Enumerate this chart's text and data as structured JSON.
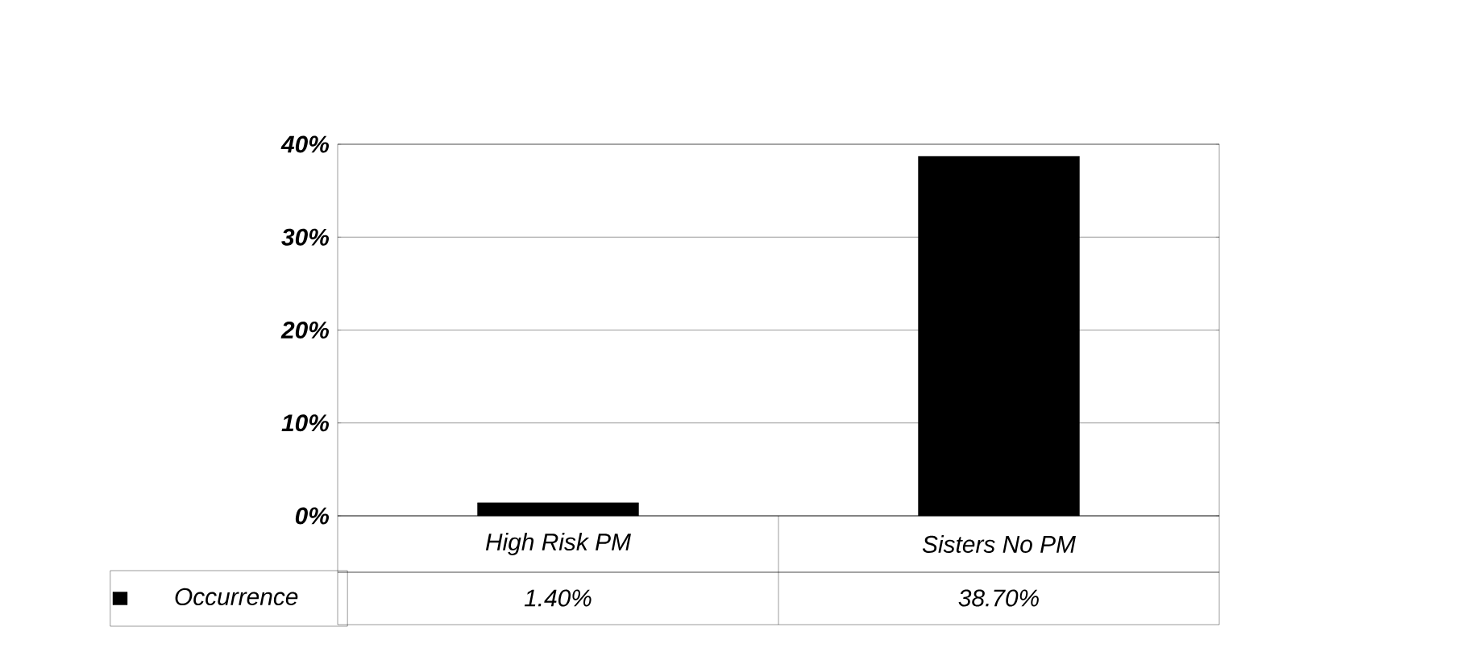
{
  "chart_data": {
    "type": "bar",
    "categories": [
      "High Risk PM",
      "Sisters No PM"
    ],
    "series": [
      {
        "name": "Occurrence",
        "color": "#000000",
        "values": [
          1.4,
          38.7
        ],
        "value_labels": [
          "1.40%",
          "38.70%"
        ]
      }
    ],
    "ylim": [
      0,
      40
    ],
    "yticks": [
      {
        "value": 0,
        "label": "0%"
      },
      {
        "value": 10,
        "label": "10%"
      },
      {
        "value": 20,
        "label": "20%"
      },
      {
        "value": 30,
        "label": "30%"
      },
      {
        "value": 40,
        "label": "40%"
      }
    ],
    "grid": "y",
    "legend": "bottom left"
  }
}
